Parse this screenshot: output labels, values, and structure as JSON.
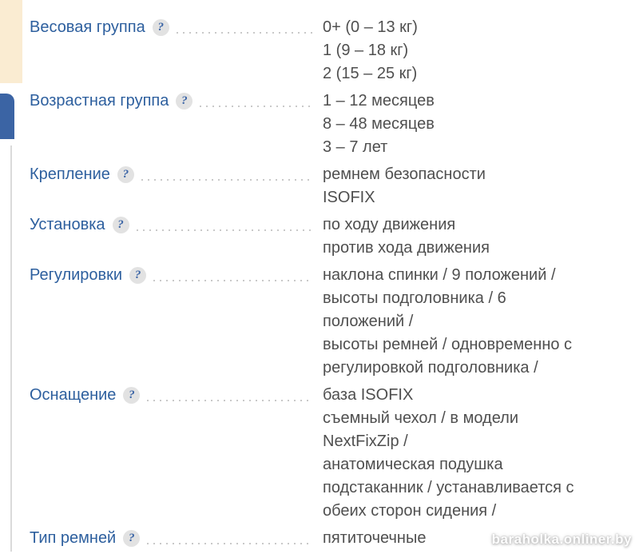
{
  "colors": {
    "label": "#2d5f9e",
    "value": "#4f4f4f",
    "leader": "#c9c9c9",
    "cream_strip": "#faecd2",
    "blue_tab": "#3b64a4",
    "gray_line": "#dadada",
    "help_circle": "#e2e2e2",
    "help_glyph": "#3a64a6"
  },
  "help_icon": {
    "glyph": "?"
  },
  "watermark": {
    "text": "baraholka.onliner.by"
  },
  "specs": [
    {
      "label": "Весовая группа",
      "lines": [
        "0+ (0 – 13 кг)",
        "1 (9 – 18 кг)",
        "2 (15 – 25 кг)"
      ]
    },
    {
      "label": "Возрастная группа",
      "lines": [
        "1 – 12 месяцев",
        "8 – 48 месяцев",
        "3 – 7 лет"
      ]
    },
    {
      "label": "Крепление",
      "lines": [
        "ремнем безопасности",
        "ISOFIX"
      ]
    },
    {
      "label": "Установка",
      "lines": [
        "по ходу движения",
        "против хода движения"
      ]
    },
    {
      "label": "Регулировки",
      "lines": [
        "наклона спинки / 9 положений /",
        "высоты подголовника / 6",
        "положений /",
        "высоты ремней / одновременно с",
        "регулировкой подголовника /"
      ]
    },
    {
      "label": "Оснащение",
      "lines": [
        "база ISOFIX",
        "съемный чехол / в модели",
        "NextFixZip /",
        "анатомическая подушка",
        "подстаканник / устанавливается с",
        "обеих сторон сидения /"
      ]
    },
    {
      "label": "Тип ремней",
      "lines": [
        "пятиточечные"
      ]
    }
  ]
}
